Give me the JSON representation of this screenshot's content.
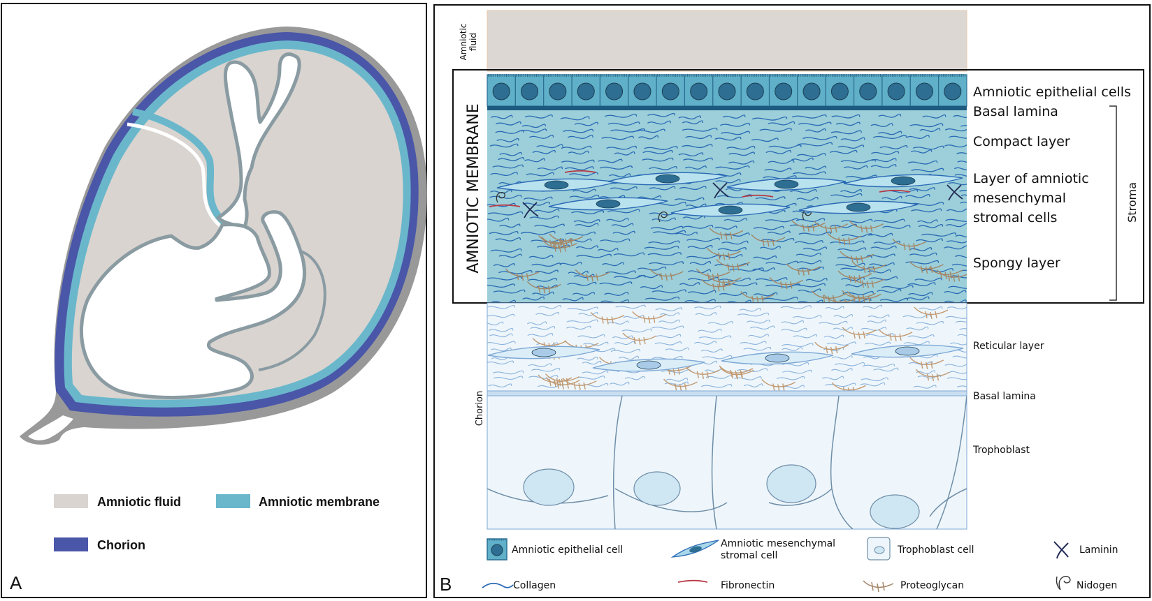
{
  "panel_a": {
    "letter": "A",
    "legend": [
      {
        "label": "Amniotic fluid",
        "color": "#d9d4d0"
      },
      {
        "label": "Amniotic membrane",
        "color": "#6ab7cb"
      },
      {
        "label": "Chorion",
        "color": "#4a56a8"
      }
    ],
    "colors": {
      "outer": "#999999",
      "fluid": "#d9d4d0",
      "membrane": "#6ab7cb",
      "chorion": "#4a56a8",
      "fetus_outline": "#8a9ba2"
    }
  },
  "panel_b": {
    "letter": "B",
    "amniotic_fluid_label_1": "Amniotic",
    "amniotic_fluid_label_2": "fluid",
    "amniotic_membrane_label": "AMNIOTIC MEMBRANE",
    "chorion_label": "Chorion",
    "stroma_label": "Stroma",
    "layers_am": {
      "epithelial": "Amniotic epithelial cells",
      "basal": "Basal lamina",
      "compact": "Compact layer",
      "mesenchymal_1": "Layer of amniotic",
      "mesenchymal_2": "mesenchymal",
      "mesenchymal_3": "stromal cells",
      "spongy": "Spongy layer"
    },
    "layers_chorion": {
      "reticular": "Reticular layer",
      "basal": "Basal lamina",
      "trophoblast": "Trophoblast"
    },
    "legend": {
      "epithelial_cell": "Amniotic epithelial cell",
      "mesenchymal_1": "Amniotic mesenchymal",
      "mesenchymal_2": "stromal cell",
      "trophoblast_cell": "Trophoblast cell",
      "laminin": "Laminin",
      "collagen": "Collagen",
      "fibronectin": "Fibronectin",
      "proteoglycan": "Proteoglycan",
      "nidogen": "Nidogen"
    },
    "colors": {
      "fluid": "#dcd7d3",
      "stroma": "#9ccfd9",
      "epithelium": "#5fb0c8",
      "nucleus": "#2d6e92",
      "basal": "#1d5a80",
      "collagen": "#2a6ab5",
      "fibronectin": "#b83a45",
      "proteoglycan": "#a48566",
      "chorion": "#eef6fb",
      "chorion_line": "#7ea8d6"
    }
  }
}
